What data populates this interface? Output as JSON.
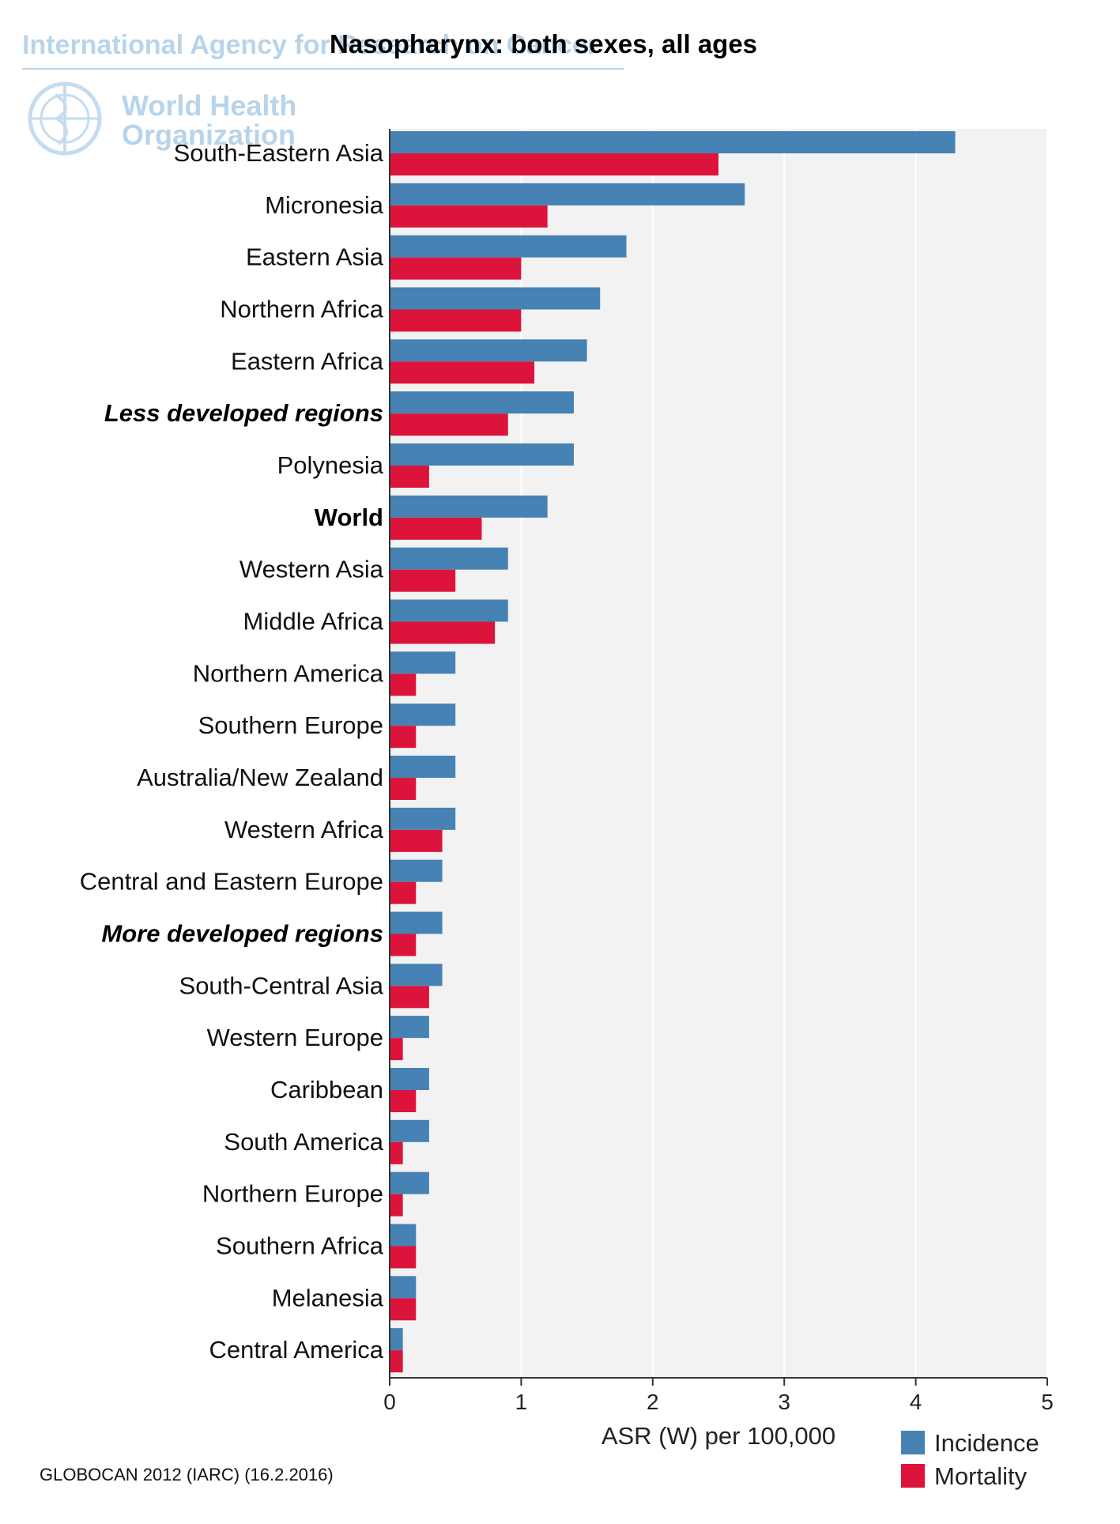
{
  "watermark": {
    "agency": "International Agency for Research on Cancer",
    "who_line1": "World Health",
    "who_line2": "Organization"
  },
  "chart_data": {
    "type": "bar",
    "orientation": "horizontal",
    "title": "Nasopharynx: both sexes, all ages",
    "xlabel": "ASR (W) per 100,000",
    "ylabel": "",
    "xlim": [
      0,
      5
    ],
    "xticks": [
      0,
      1,
      2,
      3,
      4,
      5
    ],
    "grid": true,
    "legend_position": "bottom-right",
    "categories": [
      "South-Eastern Asia",
      "Micronesia",
      "Eastern Asia",
      "Northern Africa",
      "Eastern Africa",
      "Less developed regions",
      "Polynesia",
      "World",
      "Western Asia",
      "Middle Africa",
      "Northern America",
      "Southern Europe",
      "Australia/New Zealand",
      "Western Africa",
      "Central and Eastern Europe",
      "More developed regions",
      "South-Central Asia",
      "Western Europe",
      "Caribbean",
      "South America",
      "Northern Europe",
      "Southern Africa",
      "Melanesia",
      "Central America"
    ],
    "category_styles": [
      "normal",
      "normal",
      "normal",
      "normal",
      "normal",
      "bolditalic",
      "normal",
      "bold",
      "normal",
      "normal",
      "normal",
      "normal",
      "normal",
      "normal",
      "normal",
      "bolditalic",
      "normal",
      "normal",
      "normal",
      "normal",
      "normal",
      "normal",
      "normal",
      "normal"
    ],
    "series": [
      {
        "name": "Incidence",
        "color": "#4682b4",
        "values": [
          4.3,
          2.7,
          1.8,
          1.6,
          1.5,
          1.4,
          1.4,
          1.2,
          0.9,
          0.9,
          0.5,
          0.5,
          0.5,
          0.5,
          0.4,
          0.4,
          0.4,
          0.3,
          0.3,
          0.3,
          0.3,
          0.2,
          0.2,
          0.1
        ]
      },
      {
        "name": "Mortality",
        "color": "#dc143c",
        "values": [
          2.5,
          1.2,
          1.0,
          1.0,
          1.1,
          0.9,
          0.3,
          0.7,
          0.5,
          0.8,
          0.2,
          0.2,
          0.2,
          0.4,
          0.2,
          0.2,
          0.3,
          0.1,
          0.2,
          0.1,
          0.1,
          0.2,
          0.2,
          0.1
        ]
      }
    ],
    "source": "GLOBOCAN 2012 (IARC) (16.2.2016)"
  }
}
